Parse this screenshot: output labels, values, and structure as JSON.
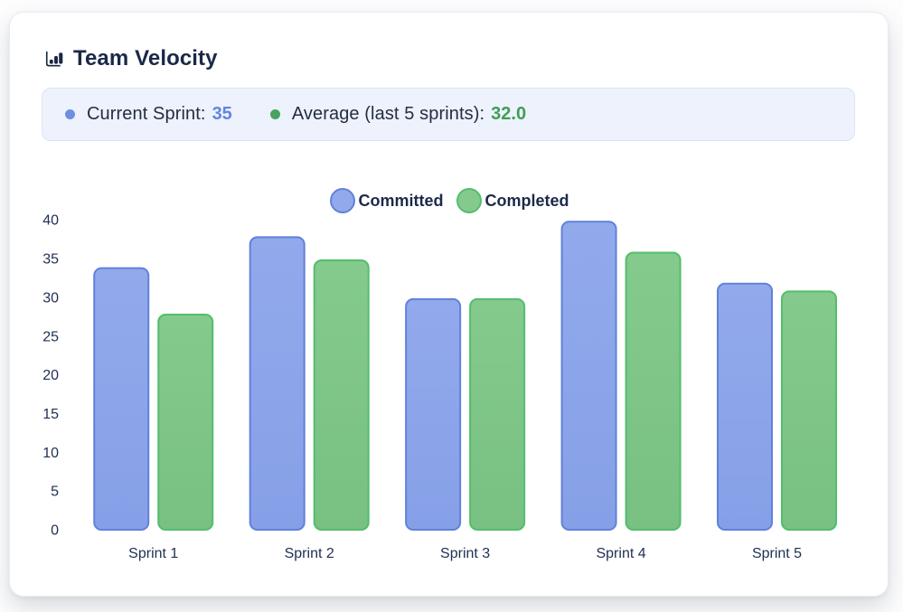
{
  "header": {
    "title": "Team Velocity",
    "icon": "bar-chart-icon",
    "title_color": "#1b2848"
  },
  "banner": {
    "current_sprint_label": "Current Sprint:",
    "current_sprint_value": "35",
    "average_label": "Average (last 5 sprints):",
    "average_value": "32.0",
    "value_blue": "#6284e0",
    "value_green": "#3f9e57",
    "background": "#edf2fc"
  },
  "chart_data": {
    "type": "bar",
    "title": "Team Velocity",
    "categories": [
      "Sprint 1",
      "Sprint 2",
      "Sprint 3",
      "Sprint 4",
      "Sprint 5"
    ],
    "series": [
      {
        "name": "Committed",
        "values": [
          34,
          38,
          30,
          40,
          32
        ],
        "fill_top": "#92a9ec",
        "fill_bottom": "#86a0e7",
        "border": "#6181da"
      },
      {
        "name": "Completed",
        "values": [
          28,
          35,
          30,
          36,
          31
        ],
        "fill_top": "#84ca8d",
        "fill_bottom": "#78c182",
        "border": "#53bd6d"
      }
    ],
    "xlabel": "",
    "ylabel": "",
    "ylim": [
      0,
      40
    ],
    "ytick_step": 5,
    "grid": false,
    "legend_position": "top"
  }
}
